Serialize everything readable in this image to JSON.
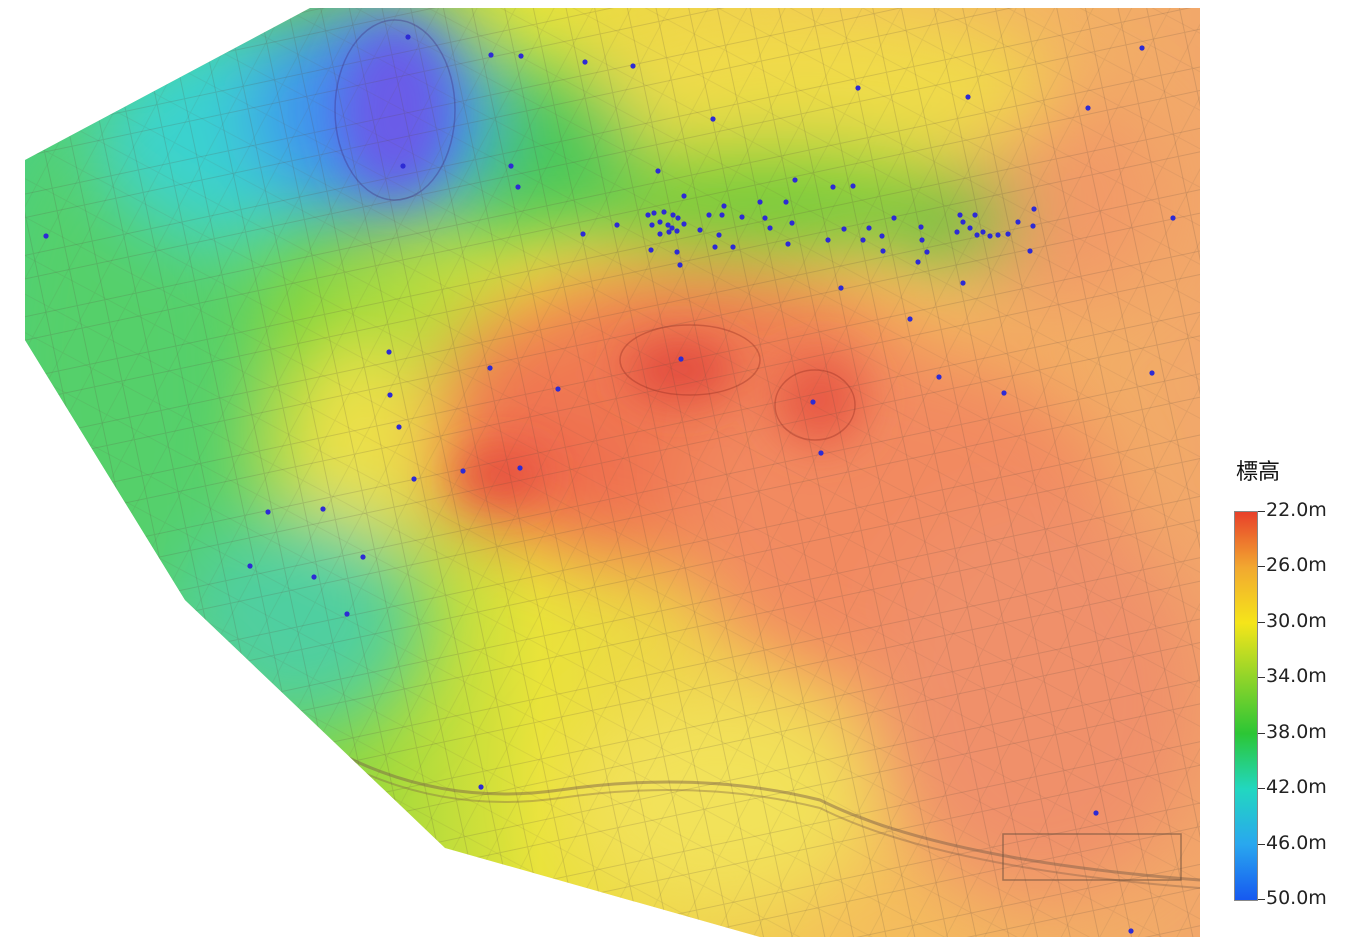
{
  "legend": {
    "title": "標高",
    "levels": [
      {
        "label": "22.0m",
        "value": 22.0,
        "color": "#e8402a"
      },
      {
        "label": "26.0m",
        "value": 26.0,
        "color": "#f2a830"
      },
      {
        "label": "30.0m",
        "value": 30.0,
        "color": "#f5e51a"
      },
      {
        "label": "34.0m",
        "value": 34.0,
        "color": "#8fd42a"
      },
      {
        "label": "38.0m",
        "value": 38.0,
        "color": "#2cc635"
      },
      {
        "label": "42.0m",
        "value": 42.0,
        "color": "#22d7c0"
      },
      {
        "label": "46.0m",
        "value": 46.0,
        "color": "#29a7ef"
      },
      {
        "label": "50.0m",
        "value": 50.0,
        "color": "#1659f0"
      }
    ]
  },
  "map": {
    "point_color": "#2d2bd4",
    "survey_point_count": 96
  }
}
